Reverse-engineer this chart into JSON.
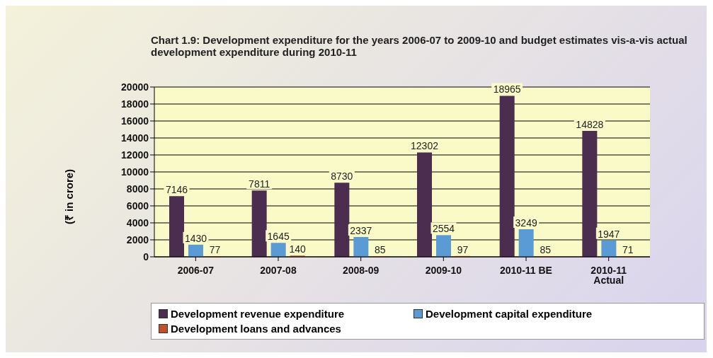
{
  "chart_data": {
    "type": "bar",
    "title": "Chart 1.9: Development expenditure for the years 2006-07 to 2009-10 and budget estimates vis-a-vis actual development expenditure during 2010-11",
    "ylabel": "(₹ in crore)",
    "categories": [
      "2006-07",
      "2007-08",
      "2008-09",
      "2009-10",
      "2010-11 BE",
      "2010-11 Actual"
    ],
    "series": [
      {
        "name": "Development revenue expenditure",
        "color": "#4b2d4f",
        "values": [
          7146,
          7811,
          8730,
          12302,
          18965,
          14828
        ]
      },
      {
        "name": "Development capital expenditure",
        "color": "#5b9bd5",
        "values": [
          1430,
          1645,
          2337,
          2554,
          3249,
          1947
        ]
      },
      {
        "name": "Development loans and advances",
        "color": "#c0502a",
        "values": [
          77,
          140,
          85,
          97,
          85,
          71
        ]
      }
    ],
    "ylim": [
      0,
      20000
    ],
    "yticks": [
      0,
      2000,
      4000,
      6000,
      8000,
      10000,
      12000,
      14000,
      16000,
      18000,
      20000
    ],
    "grid": "y",
    "legend": "bottom",
    "data_labels": true
  }
}
